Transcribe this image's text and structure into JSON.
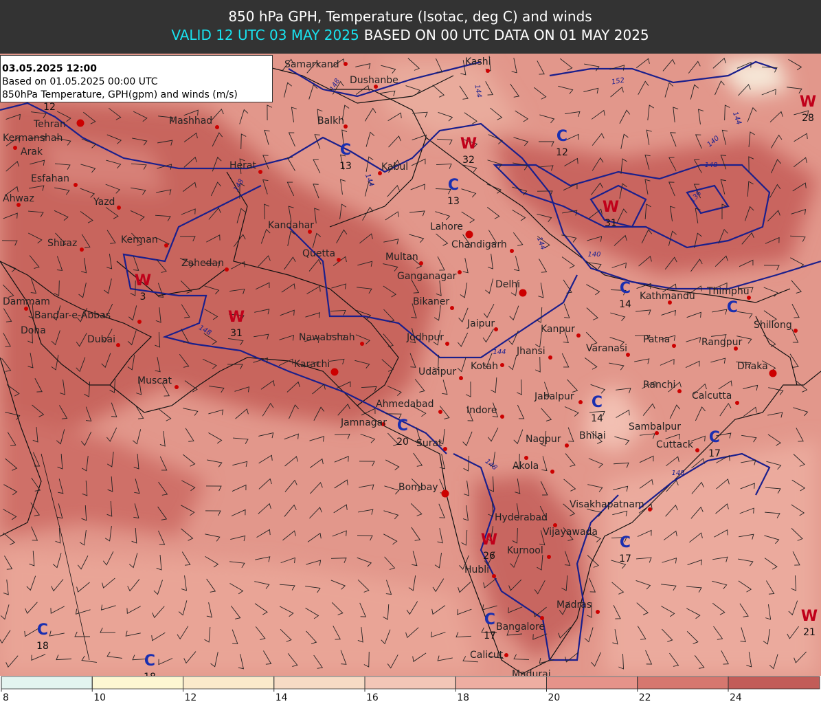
{
  "header": {
    "title": "850 hPa GPH, Temperature (Isotac, deg C) and winds",
    "valid": "VALID 12 UTC 03 MAY 2025",
    "based": "BASED ON 00 UTC DATA ON 01 MAY 2025"
  },
  "info_box": {
    "lines": [
      "03.05.2025 12:00",
      "Based on 01.05.2025 00:00 UTC",
      "850hPa Temperature, GPH(gpm) and winds (m/s)"
    ]
  },
  "cities": [
    "Samarkand",
    "Dushanbe",
    "Kashi",
    "Balkh",
    "Mashhad",
    "Tehran",
    "Kermanshah",
    "Arak",
    "Esfahan",
    "Herat",
    "Kabul",
    "Yazd",
    "Ahwaz",
    "Kandahar",
    "Kerman",
    "Shiraz",
    "Zahedan",
    "Quetta",
    "Multan",
    "Lahore",
    "Chandigarh",
    "Ganganagar",
    "Delhi",
    "Bikaner",
    "Dammam",
    "Bandar-e-Abbas",
    "Jaipur",
    "Kanpur",
    "Kathmandu",
    "Thimphu",
    "Shillong",
    "Doha",
    "Dubai",
    "Nawabshah",
    "Jodhpur",
    "Patna",
    "Rangpur",
    "Varanasi",
    "Jhansi",
    "Kotah",
    "Karachi",
    "Udaipur",
    "Dhaka",
    "Muscat",
    "Ranchi",
    "Calcutta",
    "Jabalpur",
    "Ahmedabad",
    "Indore",
    "Jamnagar",
    "Sambalpur",
    "Surat",
    "Bhilai",
    "Nagpur",
    "Cuttack",
    "Akola",
    "Bombay",
    "Visakhapatnam",
    "Hyderabad",
    "Vijayawada",
    "Kurnool",
    "Hubli",
    "Madras",
    "Bangalore",
    "Calicut",
    "Madurai"
  ],
  "centers": [
    {
      "value": 12
    },
    {
      "label": "W",
      "value": 3
    },
    {
      "label": "W",
      "value": 31
    },
    {
      "label": "W",
      "value": 32
    },
    {
      "label": "W",
      "value": 31
    },
    {
      "label": "W",
      "value": 28
    },
    {
      "label": "W",
      "value": 26
    },
    {
      "label": "W",
      "value": 21
    },
    {
      "label": "C",
      "value": 13
    },
    {
      "label": "C",
      "value": 13
    },
    {
      "label": "C",
      "value": 12
    },
    {
      "label": "C",
      "value": 14
    },
    {
      "label": "C"
    },
    {
      "label": "C",
      "value": 14
    },
    {
      "label": "C",
      "value": 20
    },
    {
      "label": "C",
      "value": 17
    },
    {
      "label": "C",
      "value": 17
    },
    {
      "label": "C",
      "value": 17
    },
    {
      "label": "C",
      "value": 18
    },
    {
      "label": "C",
      "value": 18
    }
  ],
  "contour_labels": [
    148,
    144,
    152,
    148,
    144,
    144,
    140,
    148,
    144,
    148,
    148,
    144,
    140,
    136,
    148
  ],
  "colorbar": {
    "ticks": [
      8,
      10,
      12,
      14,
      16,
      18,
      20,
      22,
      24
    ],
    "colors": [
      "#e3f4ef",
      "#fdf7d2",
      "#fbeacb",
      "#f7dbc5",
      "#f3c6b7",
      "#eeaea2",
      "#e5938a",
      "#d6776f",
      "#c25c58"
    ]
  }
}
